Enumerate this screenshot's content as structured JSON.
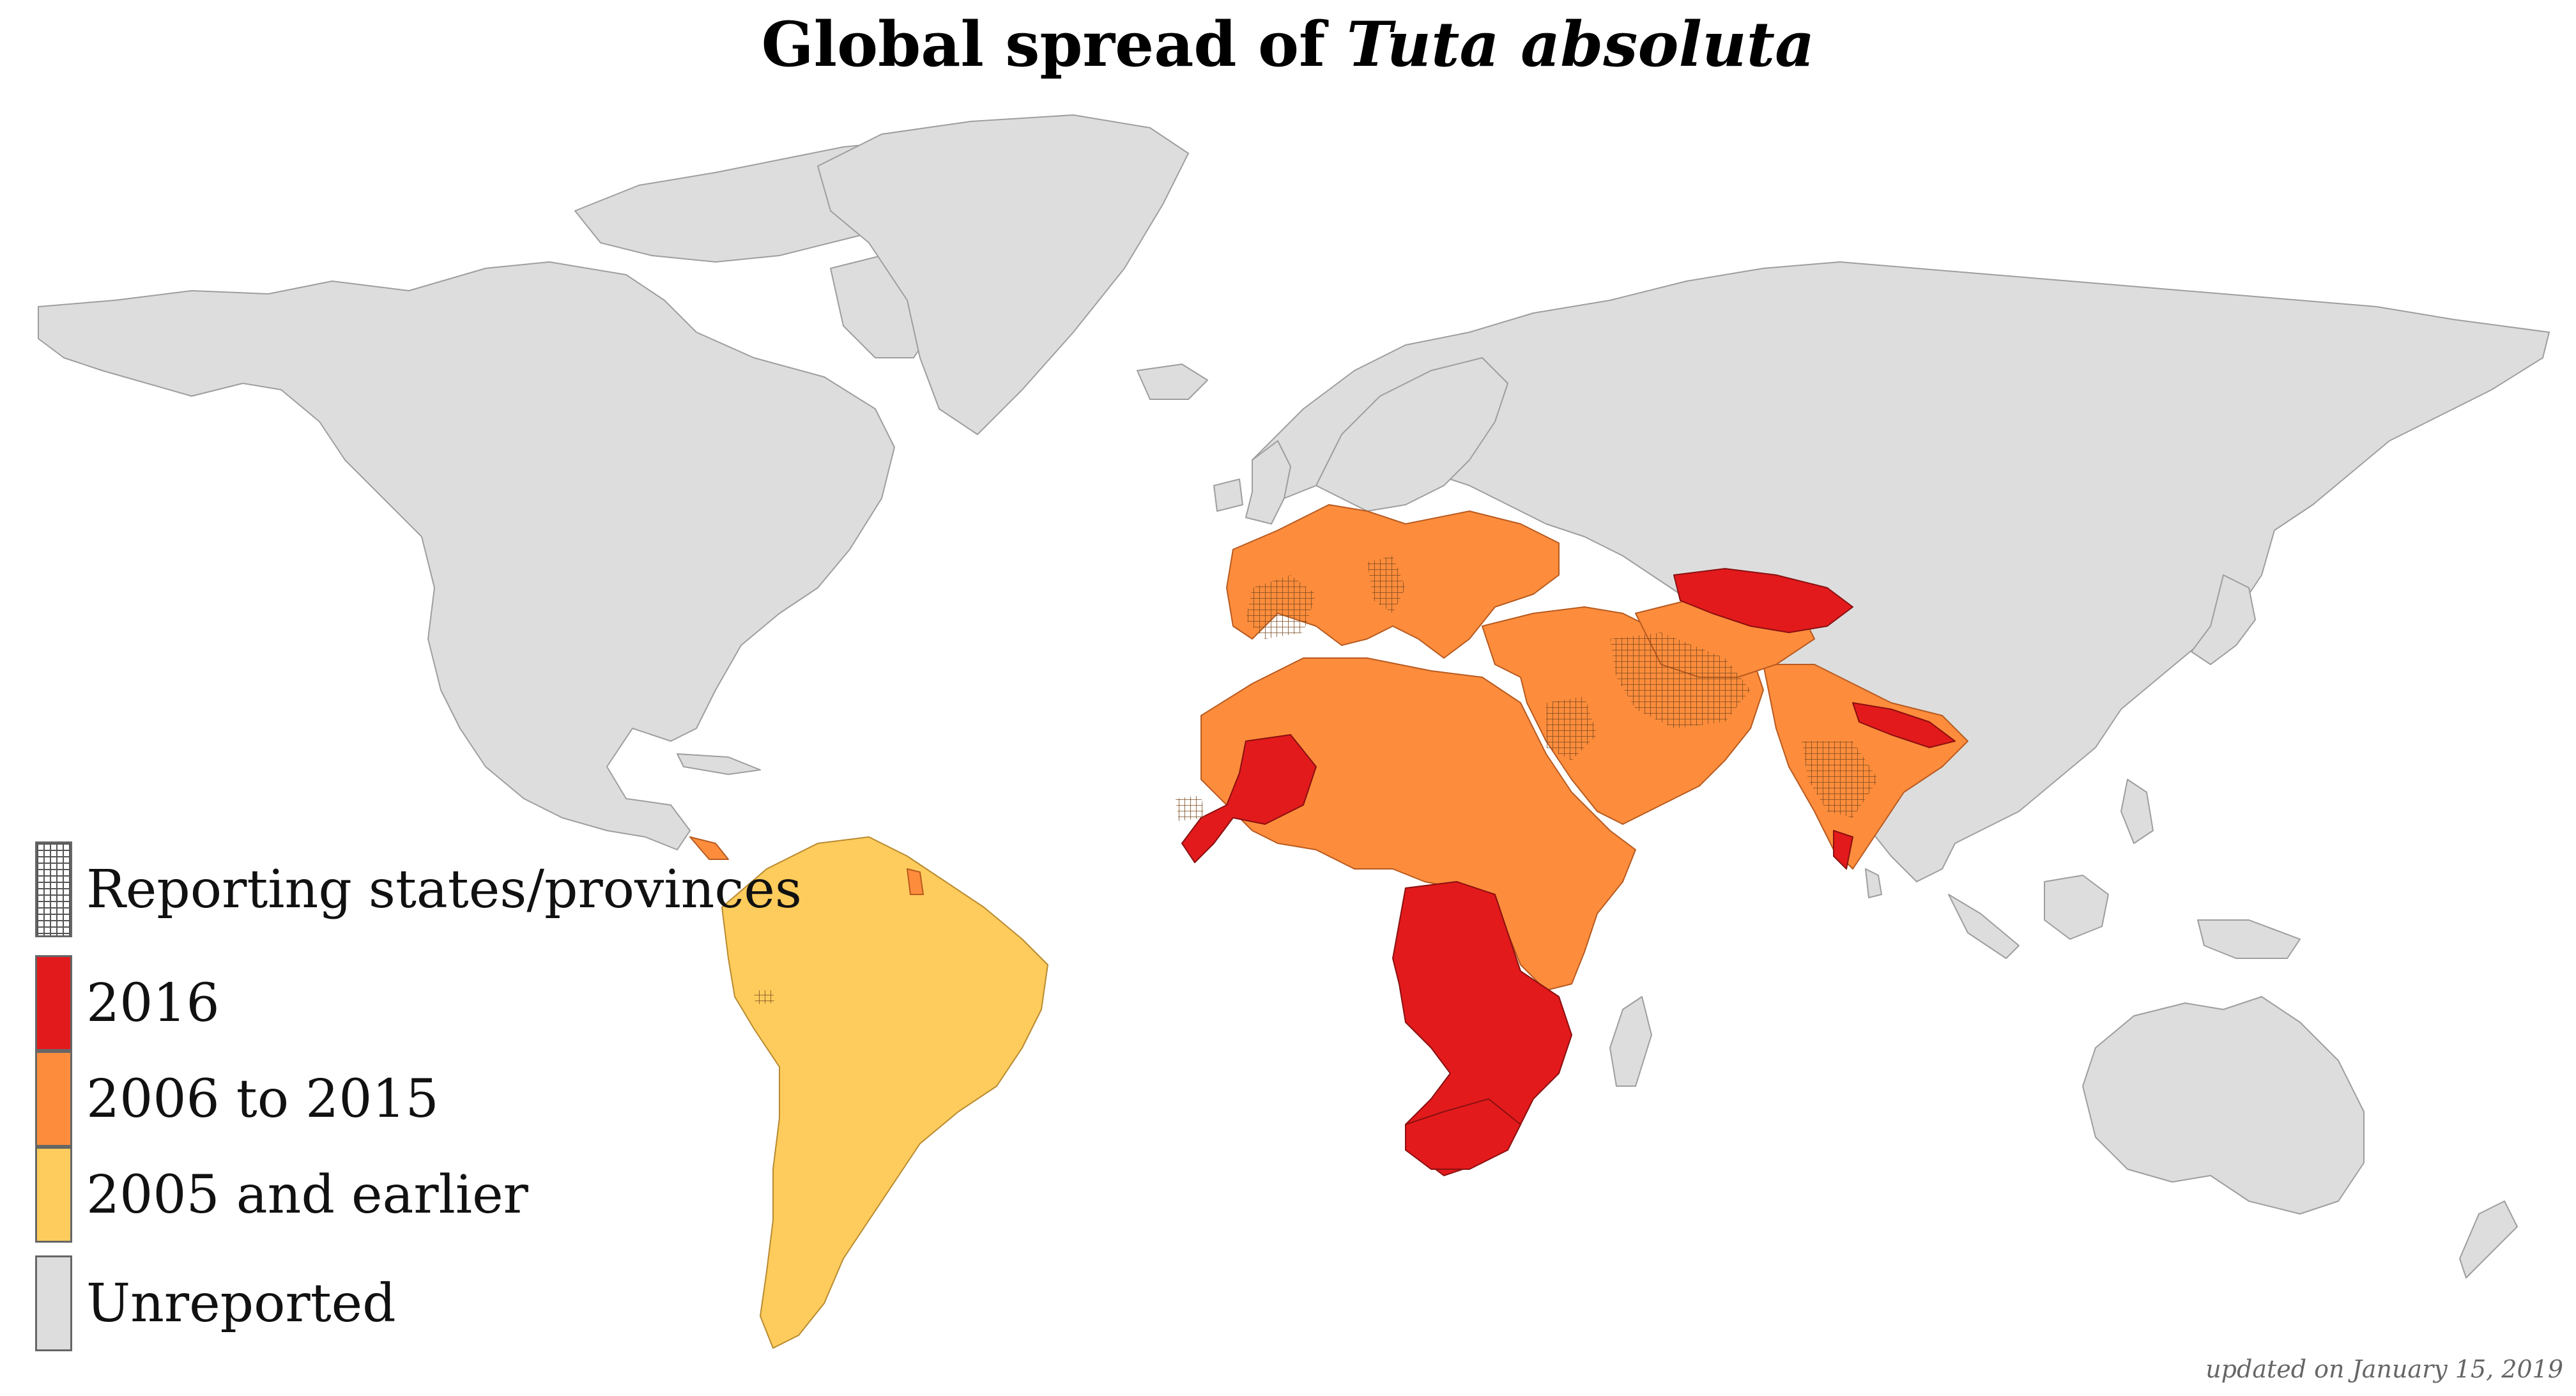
{
  "title": {
    "prefix": "Global spread of",
    "species": "Tuta absoluta"
  },
  "legend": [
    {
      "key": "reporting",
      "label": "Reporting states/provinces",
      "pattern": "grid",
      "color": "#ffffff"
    },
    {
      "key": "y2016",
      "label": "2016",
      "color": "#e31a1c"
    },
    {
      "key": "y2006_2015",
      "label": "2006 to 2015",
      "color": "#fd8d3c"
    },
    {
      "key": "y2005",
      "label": "2005 and earlier",
      "color": "#fecc5c"
    },
    {
      "key": "unreported",
      "label": "Unreported",
      "color": "#dddddd"
    }
  ],
  "footnote": "updated on January 15, 2019",
  "colors": {
    "unreported": "#dddddd",
    "border": "#9e9e9e",
    "year_2016": "#e31a1c",
    "year_2006_2015": "#fd8d3c",
    "year_2005_earlier": "#fecc5c",
    "hatch": "#7a4a20"
  }
}
